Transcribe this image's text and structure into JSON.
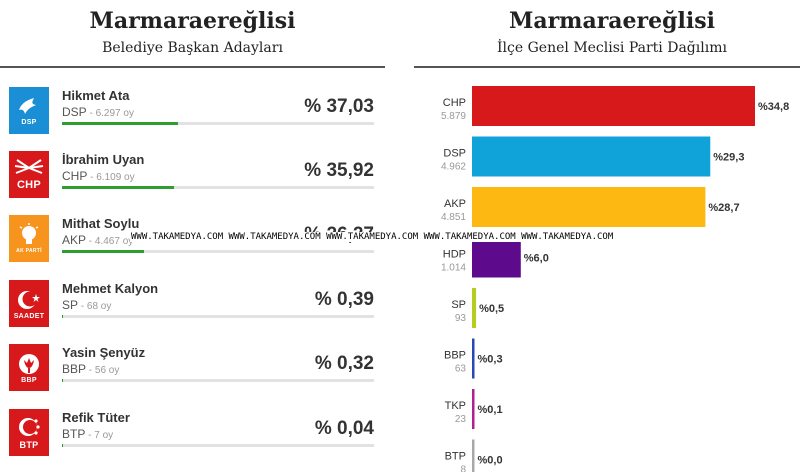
{
  "left_panel": {
    "title": "Marmaraereğlisi",
    "subtitle": "Belediye Başkan Adayları",
    "candidates": [
      {
        "name": "Hikmet Ata",
        "party": "DSP",
        "votes": "6.297 oy",
        "percent_label": "% 37,03",
        "percent": 37.03,
        "logo_color": "#1b8fd6",
        "logo_icon": "dove-icon",
        "logo_text": "DSP"
      },
      {
        "name": "İbrahim Uyan",
        "party": "CHP",
        "votes": "6.109 oy",
        "percent_label": "% 35,92",
        "percent": 35.92,
        "logo_color": "#d7191c",
        "logo_icon": "six-arrows-icon",
        "logo_text": "CHP"
      },
      {
        "name": "Mithat Soylu",
        "party": "AKP",
        "votes": "4.467 oy",
        "percent_label": "% 26,27",
        "percent": 26.27,
        "logo_color": "#f7941d",
        "logo_icon": "lightbulb-icon",
        "logo_text": "AK PARTİ"
      },
      {
        "name": "Mehmet Kalyon",
        "party": "SP",
        "votes": "68 oy",
        "percent_label": "% 0,39",
        "percent": 0.39,
        "logo_color": "#d7191c",
        "logo_icon": "crescent-icon",
        "logo_text": "SAADET"
      },
      {
        "name": "Yasin Şenyüz",
        "party": "BBP",
        "votes": "56 oy",
        "percent_label": "% 0,32",
        "percent": 0.32,
        "logo_color": "#d7191c",
        "logo_icon": "tulip-icon",
        "logo_text": "BBP"
      },
      {
        "name": "Refik Tüter",
        "party": "BTP",
        "votes": "7 oy",
        "percent_label": "% 0,04",
        "percent": 0.04,
        "logo_color": "#d7191c",
        "logo_icon": "crescent-stars-icon",
        "logo_text": "BTP"
      }
    ]
  },
  "right_panel": {
    "title": "Marmaraereğlisi",
    "subtitle": "İlçe Genel Meclisi Parti Dağılımı"
  },
  "chart_data": {
    "type": "bar",
    "orientation": "horizontal",
    "categories": [
      "CHP",
      "DSP",
      "AKP",
      "HDP",
      "SP",
      "BBP",
      "TKP",
      "BTP"
    ],
    "values": [
      34.8,
      29.3,
      28.7,
      6.0,
      0.5,
      0.3,
      0.1,
      0.0
    ],
    "value_labels": [
      "%34,8",
      "%29,3",
      "%28,7",
      "%6,0",
      "%0,5",
      "%0,3",
      "%0,1",
      "%0,0"
    ],
    "votes": [
      "5.879",
      "4.962",
      "4.851",
      "1.014",
      "93",
      "63",
      "23",
      "8"
    ],
    "colors": [
      "#d7191c",
      "#0fa3d9",
      "#fdb812",
      "#5e0a8c",
      "#b6cc1f",
      "#2a47b8",
      "#b0218f",
      "#a8a8a8"
    ],
    "xlim": [
      0,
      34.8
    ]
  },
  "watermark": "WWW.TAKAMEDYA.COM WWW.TAKAMEDYA.COM WWW.TAKAMEDYA.COM WWW.TAKAMEDYA.COM WWW.TAKAMEDYA.COM"
}
